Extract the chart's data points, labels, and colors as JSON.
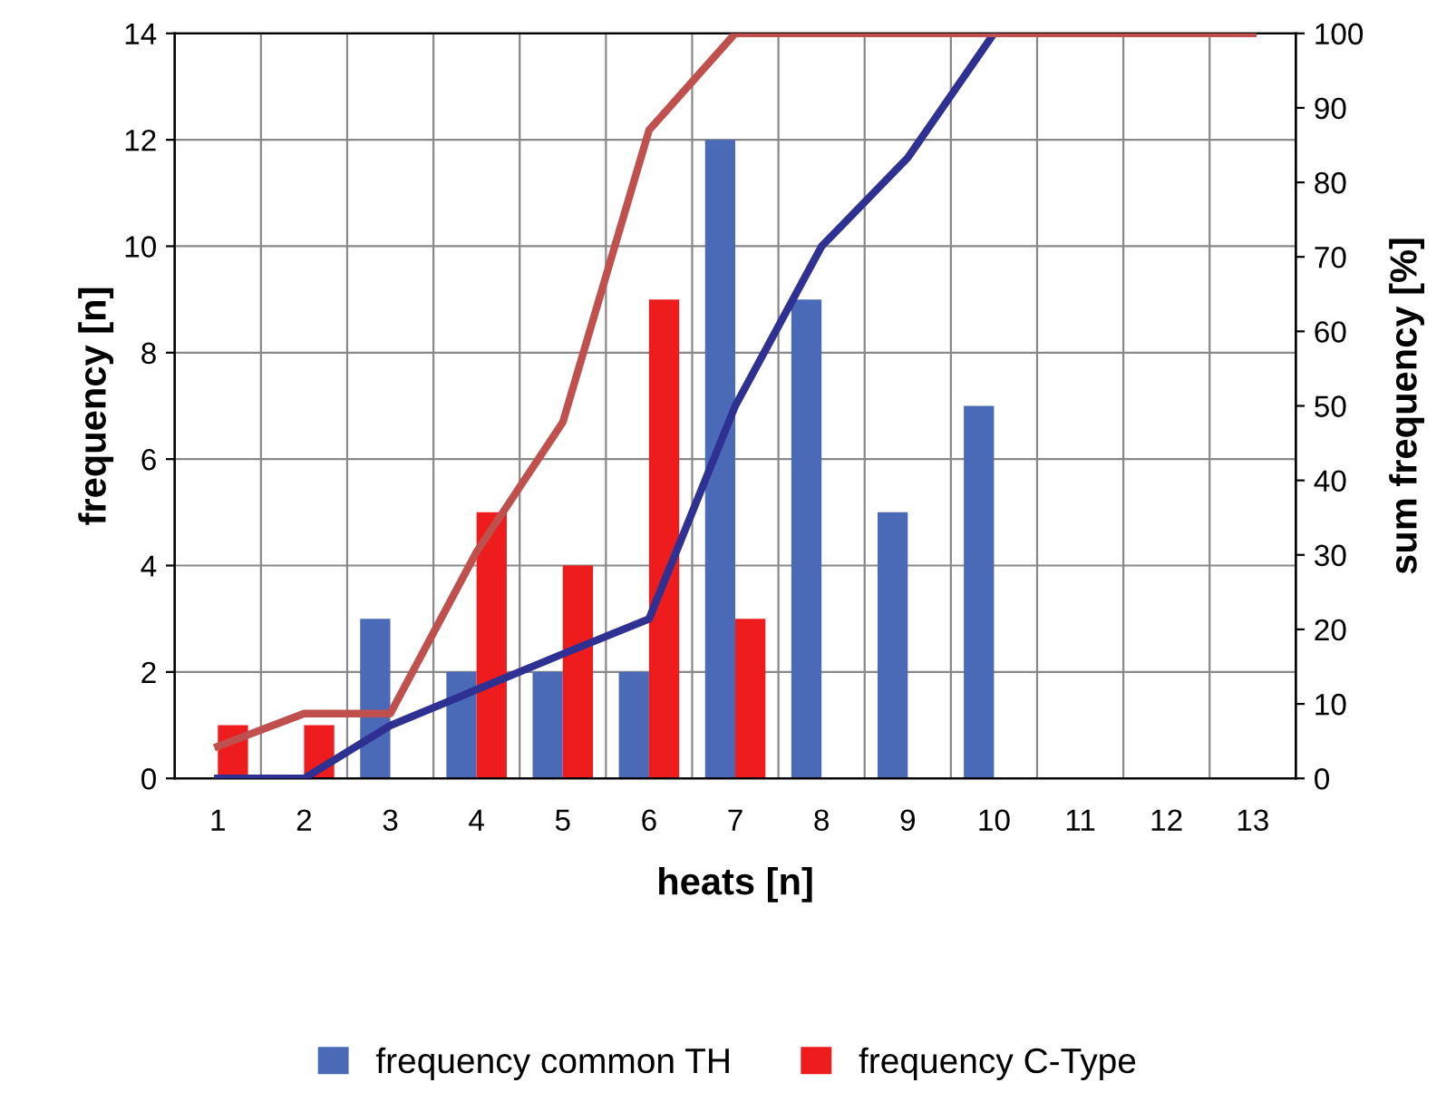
{
  "chart_data": {
    "type": "bar",
    "xlabel": "heats [n]",
    "ylabel": "frequency [n]",
    "y2label": "sum frequency [%]",
    "categories": [
      "1",
      "2",
      "3",
      "4",
      "5",
      "6",
      "7",
      "8",
      "9",
      "10",
      "11",
      "12",
      "13"
    ],
    "series": [
      {
        "name": "frequency common TH",
        "color": "#4a6ab8",
        "values": [
          0,
          0,
          3,
          2,
          2,
          2,
          12,
          9,
          5,
          7,
          0,
          0,
          0
        ]
      },
      {
        "name": "frequency C-Type",
        "color": "#ee1c1c",
        "values": [
          1,
          1,
          0,
          5,
          4,
          9,
          3,
          0,
          0,
          0,
          0,
          0,
          0
        ]
      },
      {
        "type": "line",
        "axis": "y2",
        "color": "#2e3192",
        "values": [
          0,
          0,
          7.1,
          11.9,
          16.7,
          21.4,
          50,
          71.4,
          83.3,
          100,
          null,
          null,
          null
        ]
      },
      {
        "type": "line",
        "axis": "y2",
        "color": "#c0504d",
        "values": [
          4.3,
          8.7,
          8.7,
          30.4,
          47.8,
          87,
          100,
          100,
          100,
          100,
          100,
          100,
          100
        ]
      }
    ],
    "ylim": [
      0,
      14
    ],
    "yticks": [
      0,
      2,
      4,
      6,
      8,
      10,
      12,
      14
    ],
    "y2lim": [
      0,
      100
    ],
    "y2ticks": [
      0,
      10,
      20,
      30,
      40,
      50,
      60,
      70,
      80,
      90,
      100
    ],
    "grid": true,
    "legend": "bottom"
  }
}
